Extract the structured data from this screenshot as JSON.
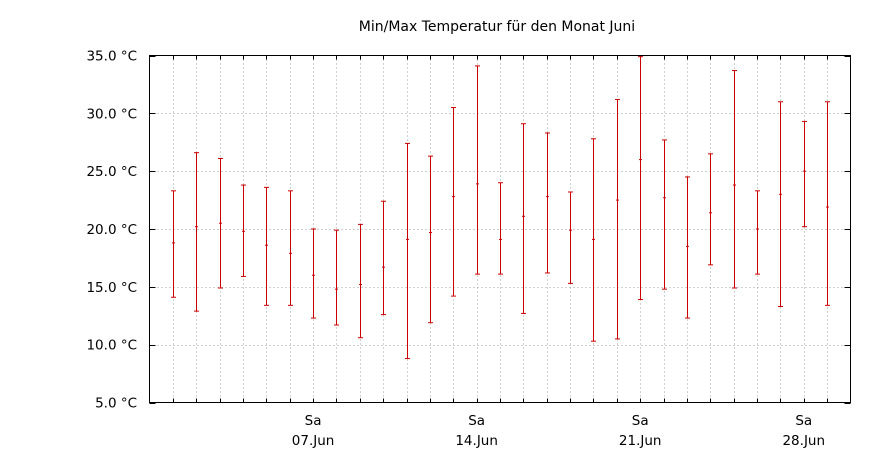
{
  "chart_data": {
    "type": "errorbar",
    "title": "Min/Max Temperatur für den Monat Juni",
    "xlabel": "",
    "ylabel": "",
    "unit": "°C",
    "ylim": [
      5,
      35
    ],
    "yticks": [
      5,
      10,
      15,
      20,
      25,
      30,
      35
    ],
    "ytick_labels": [
      "5.0 °C",
      "10.0 °C",
      "15.0 °C",
      "20.0 °C",
      "25.0 °C",
      "30.0 °C",
      "35.0 °C"
    ],
    "xlim_days": [
      0,
      30
    ],
    "x_major_labels": [
      {
        "day": 7,
        "weekday": "Sa",
        "date": "07.Jun"
      },
      {
        "day": 14,
        "weekday": "Sa",
        "date": "14.Jun"
      },
      {
        "day": 21,
        "weekday": "Sa",
        "date": "21.Jun"
      },
      {
        "day": 28,
        "weekday": "Sa",
        "date": "28.Jun"
      }
    ],
    "grid": true,
    "series": [
      {
        "color": "#cc0000",
        "points": [
          {
            "day": 1,
            "min": 14.1,
            "mean": 18.8,
            "max": 23.3
          },
          {
            "day": 2,
            "min": 12.9,
            "mean": 20.2,
            "max": 26.6
          },
          {
            "day": 3,
            "min": 14.9,
            "mean": 20.5,
            "max": 26.1
          },
          {
            "day": 4,
            "min": 15.9,
            "mean": 19.8,
            "max": 23.8
          },
          {
            "day": 5,
            "min": 13.4,
            "mean": 18.6,
            "max": 23.6
          },
          {
            "day": 6,
            "min": 13.4,
            "mean": 17.9,
            "max": 23.3
          },
          {
            "day": 7,
            "min": 12.3,
            "mean": 16.0,
            "max": 20.0
          },
          {
            "day": 8,
            "min": 11.7,
            "mean": 14.8,
            "max": 19.9
          },
          {
            "day": 9,
            "min": 10.6,
            "mean": 15.2,
            "max": 20.4
          },
          {
            "day": 10,
            "min": 12.6,
            "mean": 16.7,
            "max": 22.4
          },
          {
            "day": 11,
            "min": 8.8,
            "mean": 19.1,
            "max": 27.4
          },
          {
            "day": 12,
            "min": 11.9,
            "mean": 19.7,
            "max": 26.3
          },
          {
            "day": 13,
            "min": 14.2,
            "mean": 22.8,
            "max": 30.5
          },
          {
            "day": 14,
            "min": 16.1,
            "mean": 23.9,
            "max": 34.1
          },
          {
            "day": 15,
            "min": 16.1,
            "mean": 19.1,
            "max": 24.0
          },
          {
            "day": 16,
            "min": 12.7,
            "mean": 21.1,
            "max": 29.1
          },
          {
            "day": 17,
            "min": 16.2,
            "mean": 22.8,
            "max": 28.3
          },
          {
            "day": 18,
            "min": 15.3,
            "mean": 19.9,
            "max": 23.2
          },
          {
            "day": 19,
            "min": 10.3,
            "mean": 19.1,
            "max": 27.8
          },
          {
            "day": 20,
            "min": 10.5,
            "mean": 22.5,
            "max": 31.2
          },
          {
            "day": 21,
            "min": 13.9,
            "mean": 26.0,
            "max": 34.9
          },
          {
            "day": 22,
            "min": 14.8,
            "mean": 22.7,
            "max": 27.7
          },
          {
            "day": 23,
            "min": 12.3,
            "mean": 18.5,
            "max": 24.5
          },
          {
            "day": 24,
            "min": 16.9,
            "mean": 21.4,
            "max": 26.5
          },
          {
            "day": 25,
            "min": 14.9,
            "mean": 23.8,
            "max": 33.7
          },
          {
            "day": 26,
            "min": 16.1,
            "mean": 20.0,
            "max": 23.3
          },
          {
            "day": 27,
            "min": 13.3,
            "mean": 23.0,
            "max": 31.0
          },
          {
            "day": 28,
            "min": 20.2,
            "mean": 25.0,
            "max": 29.3
          },
          {
            "day": 29,
            "min": 13.4,
            "mean": 21.9,
            "max": 31.0
          }
        ]
      }
    ]
  }
}
